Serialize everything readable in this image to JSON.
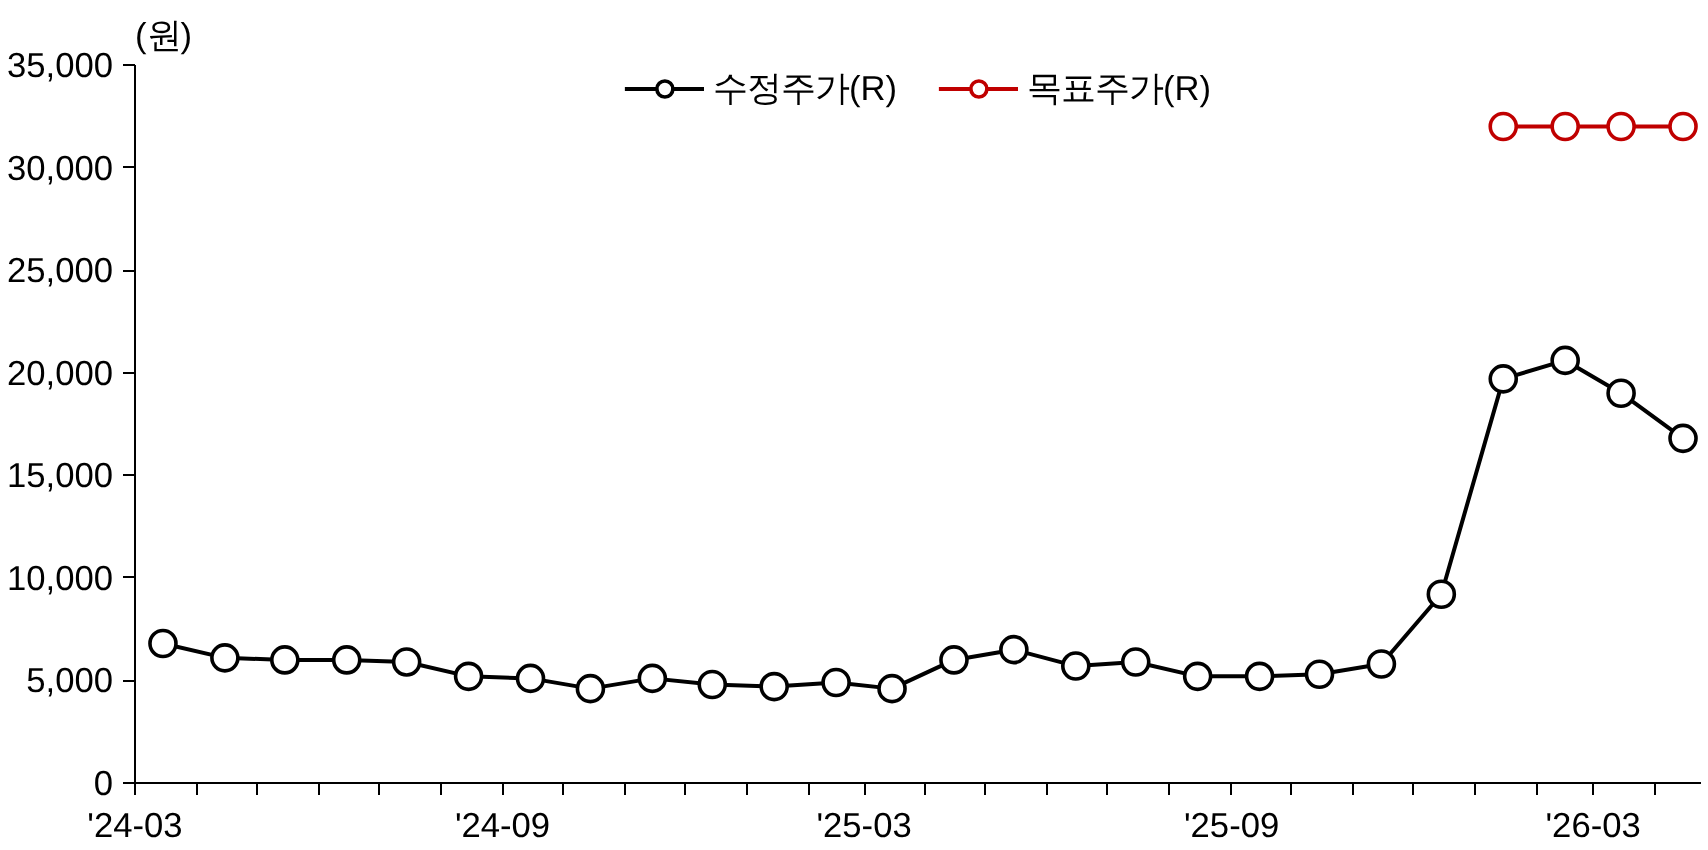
{
  "chart_data": {
    "type": "line",
    "ylabel": "(원)",
    "marker": "circle",
    "legend": "top",
    "grid": false,
    "xlim": [
      "2024-03-01",
      "2026-04-24"
    ],
    "xticks": [
      {
        "value": "2024-03-01",
        "label": "'24-03"
      },
      {
        "value": "2024-04-01",
        "label": null
      },
      {
        "value": "2024-05-01",
        "label": null
      },
      {
        "value": "2024-06-01",
        "label": null
      },
      {
        "value": "2024-07-01",
        "label": null
      },
      {
        "value": "2024-08-01",
        "label": null
      },
      {
        "value": "2024-09-01",
        "label": "'24-09"
      },
      {
        "value": "2024-10-01",
        "label": null
      },
      {
        "value": "2024-11-01",
        "label": null
      },
      {
        "value": "2024-12-01",
        "label": null
      },
      {
        "value": "2025-01-01",
        "label": null
      },
      {
        "value": "2025-02-01",
        "label": null
      },
      {
        "value": "2025-03-01",
        "label": "'25-03"
      },
      {
        "value": "2025-04-01",
        "label": null
      },
      {
        "value": "2025-05-01",
        "label": null
      },
      {
        "value": "2025-06-01",
        "label": null
      },
      {
        "value": "2025-07-01",
        "label": null
      },
      {
        "value": "2025-08-01",
        "label": null
      },
      {
        "value": "2025-09-01",
        "label": "'25-09"
      },
      {
        "value": "2025-10-01",
        "label": null
      },
      {
        "value": "2025-11-01",
        "label": null
      },
      {
        "value": "2025-12-01",
        "label": null
      },
      {
        "value": "2026-01-01",
        "label": null
      },
      {
        "value": "2026-02-01",
        "label": null
      },
      {
        "value": "2026-03-01",
        "label": "'26-03"
      },
      {
        "value": "2026-04-01",
        "label": null
      }
    ],
    "ylim": [
      0,
      35000
    ],
    "yticks": [
      0,
      {
        "value": 5000,
        "label": "5,000"
      },
      {
        "value": 10000,
        "label": "10,000"
      },
      {
        "value": 15000,
        "label": "15,000"
      },
      {
        "value": 20000,
        "label": "20,000"
      },
      {
        "value": 25000,
        "label": "25,000"
      },
      {
        "value": 30000,
        "label": "30,000"
      },
      {
        "value": 35000,
        "label": "35,000"
      }
    ],
    "series": [
      {
        "name": "수정주가(R)",
        "color": "#000000",
        "x": [
          "2024-03-15",
          "2024-04-15",
          "2024-05-15",
          "2024-06-15",
          "2024-07-15",
          "2024-08-15",
          "2024-09-15",
          "2024-10-15",
          "2024-11-15",
          "2024-12-15",
          "2025-01-15",
          "2025-02-15",
          "2025-03-15",
          "2025-04-15",
          "2025-05-15",
          "2025-06-15",
          "2025-07-15",
          "2025-08-15",
          "2025-09-15",
          "2025-10-15",
          "2025-11-15",
          "2025-12-15",
          "2026-01-15",
          "2026-02-15",
          "2026-03-15",
          "2026-04-15"
        ],
        "values": [
          6800,
          6100,
          6000,
          6000,
          5900,
          5200,
          5100,
          4600,
          5100,
          4800,
          4700,
          4900,
          4600,
          6000,
          6500,
          5700,
          5900,
          5200,
          5200,
          5300,
          5800,
          9200,
          19700,
          20600,
          19000,
          16800
        ]
      },
      {
        "name": "목표주가(R)",
        "color": "#c00000",
        "x": [
          "2026-01-15",
          "2026-02-15",
          "2026-03-15",
          "2026-04-15"
        ],
        "values": [
          32000,
          32000,
          32000,
          32000
        ]
      }
    ]
  }
}
